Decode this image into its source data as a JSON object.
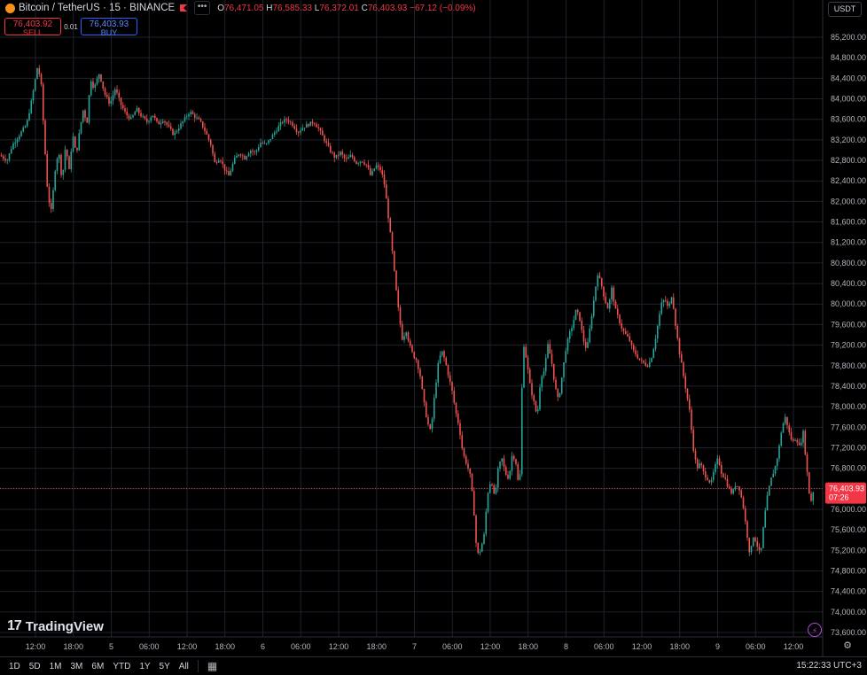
{
  "header": {
    "symbol": "Bitcoin / TetherUS · 15 · BINANCE",
    "ohlc": [
      {
        "k": "O",
        "v": "76,471.05"
      },
      {
        "k": "H",
        "v": "76,585.33"
      },
      {
        "k": "L",
        "v": "76,372.01"
      },
      {
        "k": "C",
        "v": "76,403.93"
      }
    ],
    "change": "−67.12 (−0.09%)",
    "currency": "USDT"
  },
  "trade": {
    "sell_price": "76,403.92",
    "sell_label": "SELL",
    "quantity": "0.01",
    "buy_price": "76,403.93",
    "buy_label": "BUY"
  },
  "price_tag": {
    "value": "76,403.93",
    "countdown": "07:26"
  },
  "watermark": "TradingView",
  "ranges": [
    "1D",
    "5D",
    "1M",
    "3M",
    "6M",
    "YTD",
    "1Y",
    "5Y",
    "All"
  ],
  "clock": "15:22:33 UTC+3",
  "colors": {
    "up": "#26a69a",
    "down": "#ef5350",
    "background": "#000000",
    "grid": "#1e222d",
    "price_line": "#f23645"
  },
  "chart_data": {
    "type": "candlestick",
    "y_ticks": [
      "85,200.00",
      "84,800.00",
      "84,400.00",
      "84,000.00",
      "83,600.00",
      "83,200.00",
      "82,800.00",
      "82,400.00",
      "82,000.00",
      "81,600.00",
      "81,200.00",
      "80,800.00",
      "80,400.00",
      "80,000.00",
      "79,600.00",
      "79,200.00",
      "78,800.00",
      "78,400.00",
      "78,000.00",
      "77,600.00",
      "77,200.00",
      "76,800.00",
      "76,400.00",
      "76,000.00",
      "75,600.00",
      "75,200.00",
      "74,800.00",
      "74,400.00",
      "74,000.00",
      "73,600.00"
    ],
    "x_ticks": [
      "12:00",
      "18:00",
      "5",
      "06:00",
      "12:00",
      "18:00",
      "6",
      "06:00",
      "12:00",
      "18:00",
      "7",
      "06:00",
      "12:00",
      "18:00",
      "8",
      "06:00",
      "12:00",
      "18:00",
      "9",
      "06:00",
      "12:00"
    ],
    "ylim": [
      73500,
      85400
    ],
    "last_price": 76403.93,
    "price_path": [
      [
        0,
        82900
      ],
      [
        8,
        82800
      ],
      [
        14,
        83100
      ],
      [
        22,
        83300
      ],
      [
        30,
        83500
      ],
      [
        36,
        84000
      ],
      [
        42,
        84600
      ],
      [
        46,
        84400
      ],
      [
        50,
        83200
      ],
      [
        54,
        82100
      ],
      [
        58,
        81800
      ],
      [
        62,
        82600
      ],
      [
        66,
        83000
      ],
      [
        70,
        82400
      ],
      [
        74,
        83100
      ],
      [
        78,
        82600
      ],
      [
        82,
        83300
      ],
      [
        86,
        82900
      ],
      [
        90,
        83400
      ],
      [
        94,
        83800
      ],
      [
        98,
        83500
      ],
      [
        102,
        84400
      ],
      [
        106,
        84200
      ],
      [
        112,
        84500
      ],
      [
        118,
        84100
      ],
      [
        124,
        83900
      ],
      [
        130,
        84200
      ],
      [
        136,
        83900
      ],
      [
        142,
        83700
      ],
      [
        148,
        83600
      ],
      [
        154,
        83800
      ],
      [
        160,
        83650
      ],
      [
        166,
        83550
      ],
      [
        172,
        83700
      ],
      [
        178,
        83500
      ],
      [
        184,
        83600
      ],
      [
        190,
        83450
      ],
      [
        196,
        83300
      ],
      [
        202,
        83450
      ],
      [
        208,
        83600
      ],
      [
        214,
        83750
      ],
      [
        220,
        83650
      ],
      [
        226,
        83550
      ],
      [
        232,
        83350
      ],
      [
        238,
        83100
      ],
      [
        242,
        82750
      ],
      [
        248,
        82850
      ],
      [
        254,
        82600
      ],
      [
        258,
        82500
      ],
      [
        264,
        82800
      ],
      [
        270,
        82950
      ],
      [
        276,
        82850
      ],
      [
        282,
        83000
      ],
      [
        288,
        82950
      ],
      [
        294,
        83150
      ],
      [
        300,
        83100
      ],
      [
        306,
        83250
      ],
      [
        312,
        83400
      ],
      [
        318,
        83550
      ],
      [
        324,
        83600
      ],
      [
        330,
        83500
      ],
      [
        336,
        83350
      ],
      [
        342,
        83450
      ],
      [
        348,
        83500
      ],
      [
        354,
        83550
      ],
      [
        360,
        83400
      ],
      [
        366,
        83200
      ],
      [
        372,
        83000
      ],
      [
        378,
        82850
      ],
      [
        384,
        82950
      ],
      [
        390,
        82800
      ],
      [
        396,
        82900
      ],
      [
        402,
        82750
      ],
      [
        408,
        82800
      ],
      [
        414,
        82700
      ],
      [
        418,
        82500
      ],
      [
        424,
        82700
      ],
      [
        430,
        82600
      ],
      [
        434,
        82300
      ],
      [
        438,
        81700
      ],
      [
        442,
        81100
      ],
      [
        446,
        80400
      ],
      [
        450,
        79800
      ],
      [
        454,
        79300
      ],
      [
        458,
        79500
      ],
      [
        462,
        79200
      ],
      [
        466,
        79000
      ],
      [
        470,
        78900
      ],
      [
        474,
        78600
      ],
      [
        478,
        78100
      ],
      [
        482,
        77700
      ],
      [
        486,
        77500
      ],
      [
        490,
        78200
      ],
      [
        494,
        78800
      ],
      [
        498,
        79100
      ],
      [
        502,
        78900
      ],
      [
        506,
        78600
      ],
      [
        510,
        78300
      ],
      [
        514,
        77900
      ],
      [
        518,
        77600
      ],
      [
        522,
        77100
      ],
      [
        526,
        76900
      ],
      [
        530,
        76700
      ],
      [
        534,
        76100
      ],
      [
        538,
        75100
      ],
      [
        542,
        75200
      ],
      [
        546,
        75500
      ],
      [
        550,
        76300
      ],
      [
        554,
        76600
      ],
      [
        558,
        76200
      ],
      [
        562,
        76800
      ],
      [
        566,
        77000
      ],
      [
        570,
        76700
      ],
      [
        574,
        76600
      ],
      [
        578,
        77100
      ],
      [
        582,
        76900
      ],
      [
        586,
        76300
      ],
      [
        590,
        79300
      ],
      [
        594,
        78900
      ],
      [
        598,
        78400
      ],
      [
        602,
        78100
      ],
      [
        606,
        77800
      ],
      [
        610,
        78600
      ],
      [
        614,
        78700
      ],
      [
        618,
        79200
      ],
      [
        622,
        78900
      ],
      [
        626,
        78400
      ],
      [
        630,
        78100
      ],
      [
        634,
        78600
      ],
      [
        638,
        79100
      ],
      [
        642,
        79400
      ],
      [
        646,
        79600
      ],
      [
        650,
        79900
      ],
      [
        654,
        79700
      ],
      [
        658,
        79300
      ],
      [
        662,
        79100
      ],
      [
        666,
        79600
      ],
      [
        670,
        80100
      ],
      [
        674,
        80600
      ],
      [
        678,
        80400
      ],
      [
        682,
        80100
      ],
      [
        686,
        79900
      ],
      [
        690,
        80300
      ],
      [
        694,
        79900
      ],
      [
        698,
        79700
      ],
      [
        702,
        79500
      ],
      [
        706,
        79400
      ],
      [
        710,
        79300
      ],
      [
        714,
        79100
      ],
      [
        718,
        79000
      ],
      [
        722,
        78900
      ],
      [
        726,
        78850
      ],
      [
        730,
        78800
      ],
      [
        734,
        78900
      ],
      [
        738,
        79200
      ],
      [
        742,
        79600
      ],
      [
        746,
        80000
      ],
      [
        750,
        80100
      ],
      [
        754,
        79900
      ],
      [
        758,
        80200
      ],
      [
        762,
        79600
      ],
      [
        766,
        79100
      ],
      [
        770,
        78700
      ],
      [
        774,
        78300
      ],
      [
        778,
        77900
      ],
      [
        782,
        77200
      ],
      [
        786,
        76800
      ],
      [
        790,
        76900
      ],
      [
        794,
        76700
      ],
      [
        798,
        76600
      ],
      [
        802,
        76500
      ],
      [
        806,
        76800
      ],
      [
        810,
        77000
      ],
      [
        814,
        76700
      ],
      [
        818,
        76600
      ],
      [
        822,
        76400
      ],
      [
        826,
        76300
      ],
      [
        830,
        76500
      ],
      [
        834,
        76400
      ],
      [
        838,
        76100
      ],
      [
        842,
        75600
      ],
      [
        846,
        75100
      ],
      [
        850,
        75500
      ],
      [
        854,
        75300
      ],
      [
        858,
        75100
      ],
      [
        862,
        75800
      ],
      [
        866,
        76300
      ],
      [
        870,
        76600
      ],
      [
        874,
        76800
      ],
      [
        878,
        77100
      ],
      [
        882,
        77600
      ],
      [
        886,
        77800
      ],
      [
        890,
        77500
      ],
      [
        894,
        77300
      ],
      [
        898,
        77400
      ],
      [
        902,
        77200
      ],
      [
        906,
        77500
      ],
      [
        910,
        76800
      ],
      [
        914,
        76100
      ],
      [
        918,
        76400
      ]
    ]
  }
}
